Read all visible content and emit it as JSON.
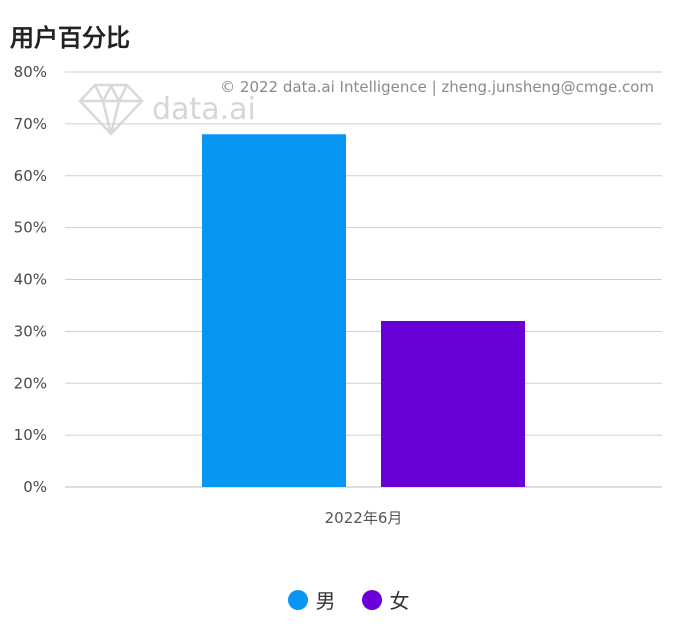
{
  "chart_data": {
    "type": "bar",
    "title": "用户百分比",
    "categories": [
      "2022年6月"
    ],
    "series": [
      {
        "name": "男",
        "values": [
          68
        ],
        "color": "#0796f2"
      },
      {
        "name": "女",
        "values": [
          32
        ],
        "color": "#6a00d8"
      }
    ],
    "ylim": [
      0,
      80
    ],
    "yticks": [
      0,
      10,
      20,
      30,
      40,
      50,
      60,
      70,
      80
    ],
    "ytick_suffix": "%",
    "grid": true,
    "legend_position": "bottom-center",
    "watermark": "© 2022 data.ai Intelligence | zheng.junsheng@cmge.com",
    "brand": "data.ai"
  }
}
